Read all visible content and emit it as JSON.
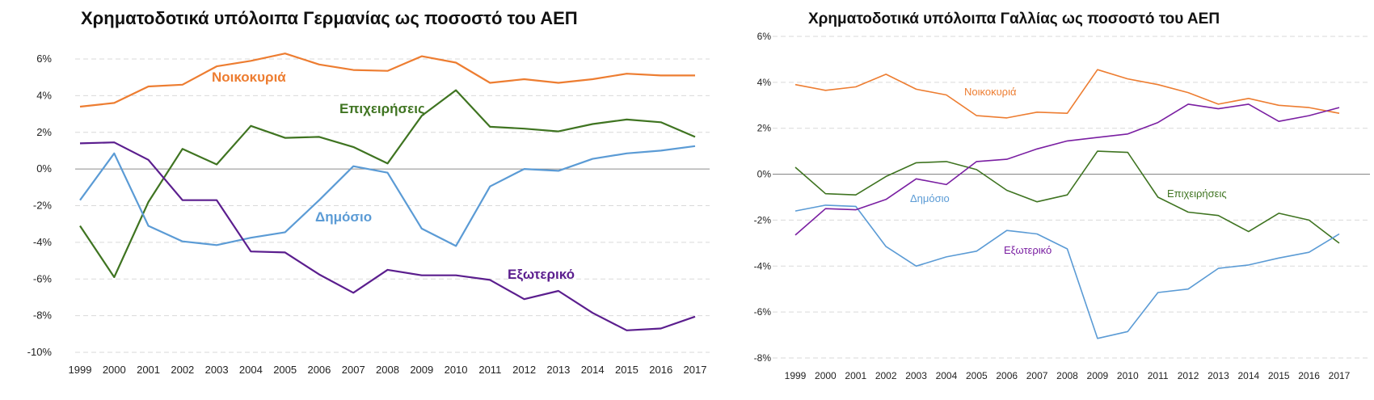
{
  "chart_data": [
    {
      "type": "line",
      "title": "Χρηματοδοτικά υπόλοιπα Γερμανίας ως ποσοστό του ΑΕΠ",
      "xlabel": "",
      "ylabel": "",
      "categories": [
        "1999",
        "2000",
        "2001",
        "2002",
        "2003",
        "2004",
        "2005",
        "2006",
        "2007",
        "2008",
        "2009",
        "2010",
        "2011",
        "2012",
        "2013",
        "2014",
        "2015",
        "2016",
        "2017"
      ],
      "ylim": [
        -10,
        6
      ],
      "yticks": [
        -10,
        -8,
        -6,
        -4,
        -2,
        0,
        2,
        4,
        6
      ],
      "ytick_labels": [
        "-10%",
        "-8%",
        "-6%",
        "-4%",
        "-2%",
        "0%",
        "2%",
        "4%",
        "6%"
      ],
      "grid": true,
      "series": [
        {
          "name": "Νοικοκυριά",
          "color": "#ED7D31",
          "values": [
            3.4,
            3.6,
            4.5,
            4.6,
            5.6,
            5.9,
            6.3,
            5.7,
            5.4,
            5.35,
            6.15,
            5.8,
            4.7,
            4.9,
            4.7,
            4.9,
            5.2,
            5.1,
            5.1
          ]
        },
        {
          "name": "Επιχειρήσεις",
          "color": "#3F7421",
          "values": [
            -3.1,
            -5.9,
            -1.8,
            1.1,
            0.25,
            2.35,
            1.7,
            1.75,
            1.2,
            0.3,
            2.9,
            4.3,
            2.3,
            2.2,
            2.05,
            2.45,
            2.7,
            2.55,
            1.75
          ]
        },
        {
          "name": "Δημόσιο",
          "color": "#5B9BD5",
          "values": [
            -1.7,
            0.85,
            -3.1,
            -3.95,
            -4.15,
            -3.75,
            -3.45,
            -1.7,
            0.15,
            -0.2,
            -3.25,
            -4.2,
            -0.95,
            0.0,
            -0.1,
            0.55,
            0.85,
            1.0,
            1.25
          ]
        },
        {
          "name": "Εξωτερικό",
          "color": "#5B1E8E",
          "values": [
            1.4,
            1.45,
            0.5,
            -1.7,
            -1.7,
            -4.5,
            -4.55,
            -5.75,
            -6.75,
            -5.5,
            -5.8,
            -5.8,
            -6.05,
            -7.1,
            -6.65,
            -7.85,
            -8.8,
            -8.7,
            -8.05
          ]
        }
      ]
    },
    {
      "type": "line",
      "title": "Χρηματοδοτικά υπόλοιπα Γαλλίας ως ποσοστό του ΑΕΠ",
      "xlabel": "",
      "ylabel": "",
      "categories": [
        "1999",
        "2000",
        "2001",
        "2002",
        "2003",
        "2004",
        "2005",
        "2006",
        "2007",
        "2008",
        "2009",
        "2010",
        "2011",
        "2012",
        "2013",
        "2014",
        "2015",
        "2016",
        "2017"
      ],
      "ylim": [
        -8,
        6
      ],
      "yticks": [
        -8,
        -6,
        -4,
        -2,
        0,
        2,
        4,
        6
      ],
      "ytick_labels": [
        "-8%",
        "-6%",
        "-4%",
        "-2%",
        "0%",
        "2%",
        "4%",
        "6%"
      ],
      "grid": true,
      "series": [
        {
          "name": "Νοικοκυριά",
          "color": "#ED7D31",
          "values": [
            3.9,
            3.65,
            3.8,
            4.35,
            3.7,
            3.45,
            2.55,
            2.45,
            2.7,
            2.65,
            4.55,
            4.15,
            3.9,
            3.55,
            3.05,
            3.3,
            3.0,
            2.9,
            2.65
          ]
        },
        {
          "name": "Επιχειρήσεις",
          "color": "#3F7421",
          "values": [
            0.3,
            -0.85,
            -0.9,
            -0.1,
            0.5,
            0.55,
            0.2,
            -0.7,
            -1.2,
            -0.9,
            1.0,
            0.95,
            -1.0,
            -1.65,
            -1.8,
            -2.5,
            -1.7,
            -2.0,
            -3.0
          ]
        },
        {
          "name": "Δημόσιο",
          "color": "#5B9BD5",
          "values": [
            -1.6,
            -1.35,
            -1.4,
            -3.15,
            -4.0,
            -3.6,
            -3.35,
            -2.45,
            -2.6,
            -3.25,
            -7.15,
            -6.85,
            -5.15,
            -5.0,
            -4.1,
            -3.95,
            -3.65,
            -3.4,
            -2.6
          ]
        },
        {
          "name": "Εξωτερικό",
          "color": "#7A1FA2",
          "values": [
            -2.65,
            -1.5,
            -1.55,
            -1.1,
            -0.2,
            -0.45,
            0.55,
            0.65,
            1.1,
            1.45,
            1.6,
            1.75,
            2.25,
            3.05,
            2.85,
            3.05,
            2.3,
            2.55,
            2.9
          ]
        }
      ]
    }
  ]
}
